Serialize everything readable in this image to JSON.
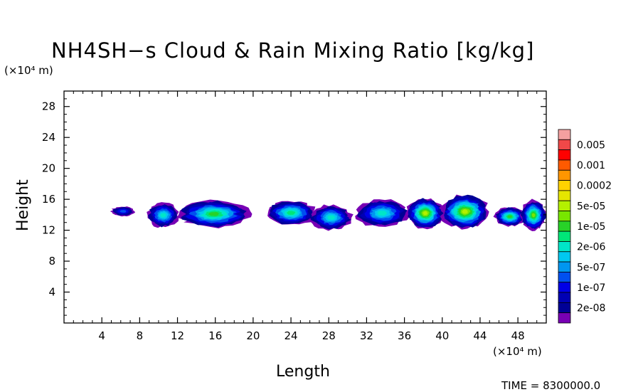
{
  "chart_data": {
    "type": "heatmap",
    "title": "NH4SH−s Cloud & Rain Mixing Ratio [kg/kg]",
    "xlabel": "Length",
    "ylabel": "Height",
    "x_unit": "(×10⁴ m)",
    "y_unit": "(×10⁴ m)",
    "xlim": [
      0,
      51
    ],
    "ylim": [
      0,
      30
    ],
    "x_ticks": [
      4,
      8,
      12,
      16,
      20,
      24,
      28,
      32,
      36,
      40,
      44,
      48
    ],
    "y_ticks": [
      4,
      8,
      12,
      16,
      20,
      24,
      28
    ],
    "colorbar": {
      "labels": [
        "0.005",
        "0.001",
        "0.0002",
        "5e-05",
        "1e-05",
        "2e-06",
        "5e-07",
        "1e-07",
        "2e-08"
      ],
      "colors": [
        "#f4a0a0",
        "#f04848",
        "#ff0000",
        "#ff5a00",
        "#ff9600",
        "#ffd200",
        "#e6e600",
        "#b4f000",
        "#78e600",
        "#28d228",
        "#00e678",
        "#00e6c8",
        "#00c8f0",
        "#0096f0",
        "#0050f0",
        "#0000e6",
        "#0000b4",
        "#000096",
        "#7800b4"
      ]
    },
    "clouds": [
      {
        "x0": 5.0,
        "x1": 7.5,
        "y0": 13.8,
        "y1": 15.1,
        "peak": 0.35
      },
      {
        "x0": 8.8,
        "x1": 12.2,
        "y0": 12.3,
        "y1": 15.6,
        "peak": 0.6
      },
      {
        "x0": 12.0,
        "x1": 19.7,
        "y0": 12.3,
        "y1": 15.9,
        "peak": 0.75
      },
      {
        "x0": 21.3,
        "x1": 26.7,
        "y0": 12.6,
        "y1": 15.9,
        "peak": 0.7
      },
      {
        "x0": 26.0,
        "x1": 30.5,
        "y0": 12.0,
        "y1": 15.3,
        "peak": 0.65
      },
      {
        "x0": 30.8,
        "x1": 36.5,
        "y0": 12.4,
        "y1": 16.0,
        "peak": 0.65
      },
      {
        "x0": 36.2,
        "x1": 40.2,
        "y0": 12.2,
        "y1": 16.2,
        "peak": 0.9
      },
      {
        "x0": 39.8,
        "x1": 45.0,
        "y0": 12.2,
        "y1": 16.6,
        "peak": 0.9
      },
      {
        "x0": 45.5,
        "x1": 48.8,
        "y0": 12.5,
        "y1": 15.0,
        "peak": 0.8
      },
      {
        "x0": 48.3,
        "x1": 51.0,
        "y0": 12.0,
        "y1": 15.9,
        "peak": 0.85
      }
    ],
    "time_label": "TIME = 8300000.0"
  }
}
